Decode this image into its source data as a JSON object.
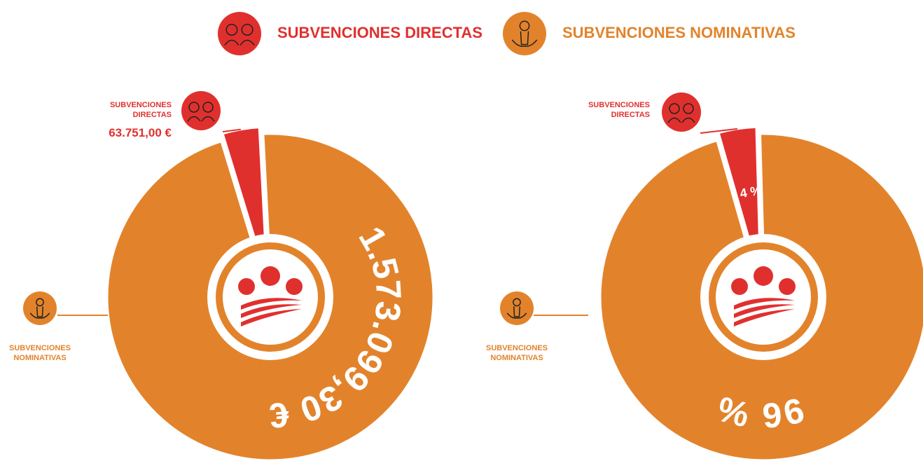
{
  "chart_data": [
    {
      "type": "pie",
      "categories": [
        "SUBVENCIONES DIRECTAS",
        "SUBVENCIONES NOMINATIVAS"
      ],
      "values": [
        63751,
        1573099.3
      ],
      "value_labels": [
        "63.751,00 €",
        "1.573.099,30 €"
      ],
      "colors": [
        "#e0302e",
        "#e2832b"
      ]
    },
    {
      "type": "pie",
      "categories": [
        "SUBVENCIONES DIRECTAS",
        "SUBVENCIONES NOMINATIVAS"
      ],
      "values": [
        4,
        96
      ],
      "value_labels": [
        "4 %",
        "96 %"
      ],
      "colors": [
        "#e0302e",
        "#e2832b"
      ]
    }
  ]
}
